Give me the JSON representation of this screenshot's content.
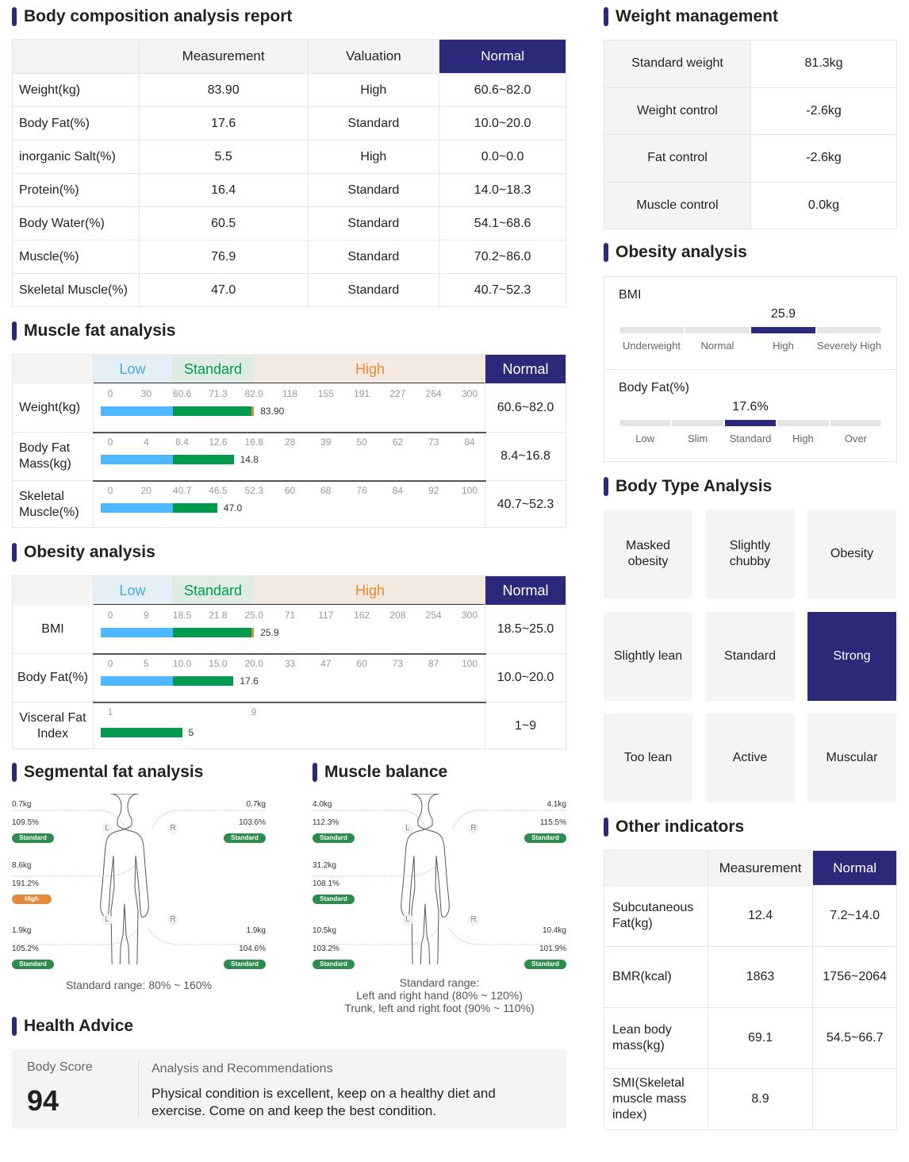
{
  "composition": {
    "title": "Body composition analysis report",
    "headers": [
      "",
      "Measurement",
      "Valuation",
      "Normal"
    ],
    "rows": [
      [
        "Weight(kg)",
        "83.90",
        "High",
        "60.6~82.0"
      ],
      [
        "Body Fat(%)",
        "17.6",
        "Standard",
        "10.0~20.0"
      ],
      [
        "inorganic Salt(%)",
        "5.5",
        "High",
        "0.0~0.0"
      ],
      [
        "Protein(%)",
        "16.4",
        "Standard",
        "14.0~18.3"
      ],
      [
        "Body Water(%)",
        "60.5",
        "Standard",
        "54.1~68.6"
      ],
      [
        "Muscle(%)",
        "76.9",
        "Standard",
        "70.2~86.0"
      ],
      [
        "Skeletal Muscle(%)",
        "47.0",
        "Standard",
        "40.7~52.3"
      ]
    ]
  },
  "muscle_fat": {
    "title": "Muscle fat analysis",
    "low": "Low",
    "standard": "Standard",
    "high": "High",
    "normal": "Normal",
    "rows": [
      {
        "label": "Weight(kg)",
        "ticks": [
          "0",
          "30",
          "60.6",
          "71.3",
          "82.0",
          "118",
          "155",
          "191",
          "227",
          "264",
          "300"
        ],
        "value": 83.9,
        "value_label": "83.90",
        "range": "60.6~82.0"
      },
      {
        "label": "Body Fat Mass(kg)",
        "ticks": [
          "0",
          "4",
          "8.4",
          "12.6",
          "16.8",
          "28",
          "39",
          "50",
          "62",
          "73",
          "84"
        ],
        "value": 14.8,
        "value_label": "14.8",
        "range": "8.4~16.8"
      },
      {
        "label": "Skeletal Muscle(%)",
        "ticks": [
          "0",
          "20",
          "40.7",
          "46.5",
          "52.3",
          "60",
          "68",
          "76",
          "84",
          "92",
          "100"
        ],
        "value": 47.0,
        "value_label": "47.0",
        "range": "40.7~52.3"
      }
    ]
  },
  "obesity_table": {
    "title": "Obesity analysis",
    "low": "Low",
    "standard": "Standard",
    "high": "High",
    "normal": "Normal",
    "rows": [
      {
        "label": "BMI",
        "ticks": [
          "0",
          "9",
          "18.5",
          "21.8",
          "25.0",
          "71",
          "117",
          "162",
          "208",
          "254",
          "300"
        ],
        "value": 25.9,
        "value_label": "25.9",
        "range": "18.5~25.0"
      },
      {
        "label": "Body Fat(%)",
        "ticks": [
          "0",
          "5",
          "10.0",
          "15.0",
          "20.0",
          "33",
          "47",
          "60",
          "73",
          "87",
          "100"
        ],
        "value": 17.6,
        "value_label": "17.6",
        "range": "10.0~20.0"
      }
    ],
    "visceral": {
      "label": "Visceral Fat Index",
      "ticks": [
        "1",
        "9"
      ],
      "value": 5,
      "value_label": "5",
      "range": "1~9"
    }
  },
  "segmental_fat": {
    "title": "Segmental fat analysis",
    "left_arm": [
      "0.7kg",
      "109.5%",
      "Standard"
    ],
    "right_arm": [
      "0.7kg",
      "103.6%",
      "Standard"
    ],
    "trunk": [
      "8.6kg",
      "191.2%",
      "High"
    ],
    "left_leg": [
      "1.9kg",
      "105.2%",
      "Standard"
    ],
    "right_leg": [
      "1.9kg",
      "104.6%",
      "Standard"
    ],
    "note": "Standard range: 80% ~ 160%",
    "L": "L",
    "R": "R"
  },
  "muscle_balance": {
    "title": "Muscle balance",
    "left_arm": [
      "4.0kg",
      "112.3%",
      "Standard"
    ],
    "right_arm": [
      "4.1kg",
      "115.5%",
      "Standard"
    ],
    "trunk": [
      "31.2kg",
      "108.1%",
      "Standard"
    ],
    "left_leg": [
      "10.5kg",
      "103.2%",
      "Standard"
    ],
    "right_leg": [
      "10.4kg",
      "101.9%",
      "Standard"
    ],
    "note1": "Standard range:",
    "note2": "Left and right hand (80% ~ 120%)",
    "note3": "Trunk, left and right foot (90% ~ 110%)",
    "L": "L",
    "R": "R"
  },
  "health": {
    "title": "Health Advice",
    "score_label": "Body Score",
    "score": "94",
    "rec_label": "Analysis and Recommendations",
    "rec": "Physical condition is excellent, keep on a healthy diet and exercise. Come on and keep the best condition."
  },
  "weight_mgmt": {
    "title": "Weight management",
    "rows": [
      [
        "Standard weight",
        "81.3kg"
      ],
      [
        "Weight control",
        "-2.6kg"
      ],
      [
        "Fat control",
        "-2.6kg"
      ],
      [
        "Muscle control",
        "0.0kg"
      ]
    ]
  },
  "obesity_gauge": {
    "title": "Obesity analysis",
    "bmi": {
      "label": "BMI",
      "value": "25.9",
      "segments": [
        "Underweight",
        "Normal",
        "High",
        "Severely High"
      ],
      "active": 2
    },
    "fat": {
      "label": "Body Fat(%)",
      "value": "17.6%",
      "segments": [
        "Low",
        "Slim",
        "Standard",
        "High",
        "Over"
      ],
      "active": 2
    }
  },
  "body_type": {
    "title": "Body Type Analysis",
    "types": [
      "Masked obesity",
      "Slightly chubby",
      "Obesity",
      "Slightly lean",
      "Standard",
      "Strong",
      "Too lean",
      "Active",
      "Muscular"
    ],
    "selected": "Strong"
  },
  "other": {
    "title": "Other indicators",
    "headers": [
      "",
      "Measurement",
      "Normal"
    ],
    "rows": [
      [
        "Subcutaneous Fat(kg)",
        "12.4",
        "7.2~14.0"
      ],
      [
        "BMR(kcal)",
        "1863",
        "1756~2064"
      ],
      [
        "Lean body mass(kg)",
        "69.1",
        "54.5~66.7"
      ],
      [
        "SMI(Skeletal muscle mass index)",
        "8.9",
        ""
      ]
    ]
  },
  "colors": {
    "navy": "#2b2a7a",
    "low": "#4db8ff",
    "standard": "#009a4e",
    "high": "#e88a2e",
    "pill_green": "#2e8b4e",
    "pill_orange": "#e08a3a"
  }
}
